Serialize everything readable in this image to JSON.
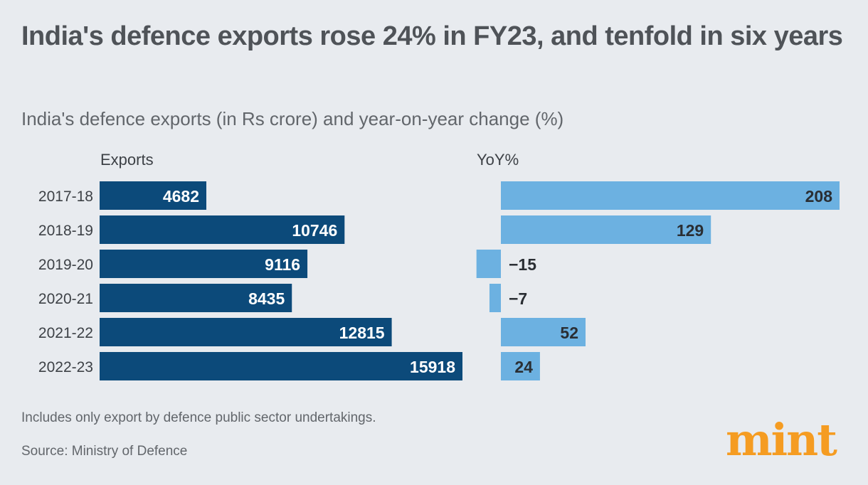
{
  "header": {
    "title": "India's defence exports rose 24% in FY23, and tenfold in six years",
    "subtitle": "India's defence exports (in Rs crore) and year-on-year change (%)"
  },
  "chart_data": [
    {
      "type": "bar",
      "orientation": "horizontal",
      "title": "Exports",
      "categories": [
        "2017-18",
        "2018-19",
        "2019-20",
        "2020-21",
        "2021-22",
        "2022-23"
      ],
      "values": [
        4682,
        10746,
        9116,
        8435,
        12815,
        15918
      ],
      "color": "#0c4a7a",
      "data_labels": true
    },
    {
      "type": "bar",
      "orientation": "horizontal",
      "title": "YoY%",
      "categories": [
        "2017-18",
        "2018-19",
        "2019-20",
        "2020-21",
        "2021-22",
        "2022-23"
      ],
      "values": [
        208,
        129,
        -15,
        -7,
        52,
        24
      ],
      "value_labels": [
        "208",
        "129",
        "−15",
        "−7",
        "52",
        "24"
      ],
      "color": "#6cb1e1",
      "data_labels": true
    }
  ],
  "footer": {
    "note": "Includes only export by defence public sector undertakings.",
    "source": "Source: Ministry of Defence",
    "logo": "mint"
  },
  "colors": {
    "background": "#e8ebef",
    "exports": "#0c4a7a",
    "yoy": "#6cb1e1",
    "logo": "#f59c22"
  }
}
